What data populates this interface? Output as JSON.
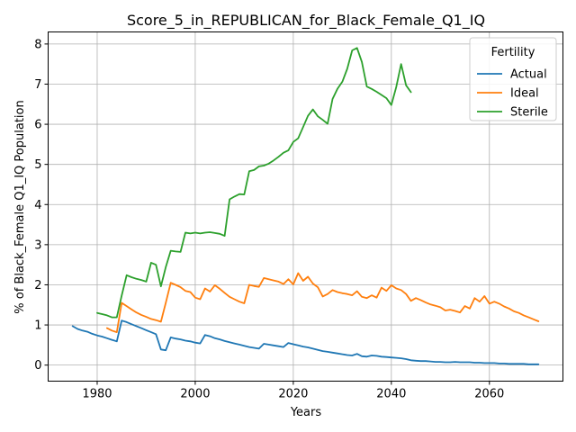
{
  "chart_data": {
    "type": "line",
    "title": "Score_5_in_REPUBLICAN_for_Black_Female_Q1_IQ",
    "xlabel": "Years",
    "ylabel": "% of Black_Female Q1_IQ Population",
    "xlim": [
      1970,
      2075
    ],
    "ylim": [
      -0.4,
      8.3
    ],
    "xticks": [
      1980,
      2000,
      2020,
      2040,
      2060
    ],
    "yticks": [
      0,
      1,
      2,
      3,
      4,
      5,
      6,
      7,
      8
    ],
    "grid": true,
    "legend": {
      "title": "Fertility",
      "placement": "top-right"
    },
    "series": [
      {
        "name": "Actual",
        "color": "#1f77b4",
        "x": [
          1975,
          1976,
          1977,
          1978,
          1979,
          1980,
          1981,
          1982,
          1983,
          1984,
          1985,
          1986,
          1987,
          1988,
          1989,
          1990,
          1991,
          1992,
          1993,
          1994,
          1995,
          1996,
          1997,
          1998,
          1999,
          2000,
          2001,
          2002,
          2003,
          2004,
          2005,
          2006,
          2007,
          2008,
          2009,
          2010,
          2011,
          2012,
          2013,
          2014,
          2015,
          2016,
          2017,
          2018,
          2019,
          2020,
          2021,
          2022,
          2023,
          2024,
          2025,
          2026,
          2027,
          2028,
          2029,
          2030,
          2031,
          2032,
          2033,
          2034,
          2035,
          2036,
          2037,
          2038,
          2039,
          2040,
          2041,
          2042,
          2043,
          2044,
          2045,
          2046,
          2047,
          2048,
          2049,
          2050,
          2051,
          2052,
          2053,
          2054,
          2055,
          2056,
          2057,
          2058,
          2059,
          2060,
          2061,
          2062,
          2063,
          2064,
          2065,
          2066,
          2067,
          2068,
          2069,
          2070
        ],
        "y": [
          0.97,
          0.9,
          0.86,
          0.83,
          0.78,
          0.74,
          0.71,
          0.67,
          0.63,
          0.59,
          1.11,
          1.07,
          1.02,
          0.97,
          0.92,
          0.87,
          0.82,
          0.77,
          0.39,
          0.37,
          0.69,
          0.66,
          0.64,
          0.61,
          0.59,
          0.56,
          0.54,
          0.75,
          0.72,
          0.67,
          0.64,
          0.6,
          0.57,
          0.54,
          0.51,
          0.48,
          0.45,
          0.43,
          0.41,
          0.53,
          0.51,
          0.49,
          0.47,
          0.45,
          0.55,
          0.52,
          0.49,
          0.46,
          0.44,
          0.41,
          0.38,
          0.35,
          0.33,
          0.31,
          0.29,
          0.27,
          0.25,
          0.24,
          0.28,
          0.22,
          0.21,
          0.24,
          0.23,
          0.21,
          0.2,
          0.19,
          0.18,
          0.17,
          0.15,
          0.12,
          0.11,
          0.1,
          0.1,
          0.09,
          0.08,
          0.08,
          0.07,
          0.07,
          0.08,
          0.07,
          0.07,
          0.07,
          0.06,
          0.06,
          0.05,
          0.05,
          0.05,
          0.04,
          0.04,
          0.03,
          0.03,
          0.03,
          0.03,
          0.02,
          0.02,
          0.02
        ]
      },
      {
        "name": "Ideal",
        "color": "#ff7f0e",
        "x": [
          1982,
          1983,
          1984,
          1985,
          1986,
          1987,
          1988,
          1989,
          1990,
          1991,
          1992,
          1993,
          1994,
          1995,
          1996,
          1997,
          1998,
          1999,
          2000,
          2001,
          2002,
          2003,
          2004,
          2005,
          2006,
          2007,
          2008,
          2009,
          2010,
          2011,
          2012,
          2013,
          2014,
          2015,
          2016,
          2017,
          2018,
          2019,
          2020,
          2021,
          2022,
          2023,
          2024,
          2025,
          2026,
          2027,
          2028,
          2029,
          2030,
          2031,
          2032,
          2033,
          2034,
          2035,
          2036,
          2037,
          2038,
          2039,
          2040,
          2041,
          2042,
          2043,
          2044,
          2045,
          2046,
          2047,
          2048,
          2049,
          2050,
          2051,
          2052,
          2053,
          2054,
          2055,
          2056,
          2057,
          2058,
          2059,
          2060,
          2061,
          2062,
          2063,
          2064,
          2065,
          2066,
          2067,
          2068,
          2069,
          2070
        ],
        "y": [
          0.92,
          0.86,
          0.82,
          1.55,
          1.47,
          1.39,
          1.31,
          1.25,
          1.2,
          1.15,
          1.12,
          1.08,
          1.55,
          2.05,
          2.0,
          1.94,
          1.85,
          1.82,
          1.68,
          1.64,
          1.91,
          1.83,
          1.99,
          1.9,
          1.8,
          1.7,
          1.64,
          1.58,
          1.54,
          2.0,
          1.97,
          1.95,
          2.17,
          2.14,
          2.11,
          2.08,
          2.02,
          2.14,
          2.01,
          2.29,
          2.1,
          2.2,
          2.03,
          1.94,
          1.71,
          1.77,
          1.87,
          1.82,
          1.79,
          1.77,
          1.74,
          1.84,
          1.7,
          1.67,
          1.74,
          1.68,
          1.93,
          1.85,
          1.99,
          1.91,
          1.87,
          1.77,
          1.6,
          1.67,
          1.62,
          1.56,
          1.51,
          1.48,
          1.44,
          1.36,
          1.38,
          1.35,
          1.31,
          1.47,
          1.41,
          1.67,
          1.58,
          1.72,
          1.53,
          1.58,
          1.53,
          1.46,
          1.41,
          1.34,
          1.3,
          1.24,
          1.19,
          1.14,
          1.09
        ]
      },
      {
        "name": "Sterile",
        "color": "#2ca02c",
        "x": [
          1980,
          1981,
          1982,
          1983,
          1984,
          1985,
          1986,
          1987,
          1988,
          1989,
          1990,
          1991,
          1992,
          1993,
          1994,
          1995,
          1996,
          1997,
          1998,
          1999,
          2000,
          2001,
          2002,
          2003,
          2004,
          2005,
          2006,
          2007,
          2008,
          2009,
          2010,
          2011,
          2012,
          2013,
          2014,
          2015,
          2016,
          2017,
          2018,
          2019,
          2020,
          2021,
          2022,
          2023,
          2024,
          2025,
          2026,
          2027,
          2028,
          2029,
          2030,
          2031,
          2032,
          2033,
          2034,
          2035,
          2036,
          2037,
          2038,
          2039,
          2040,
          2041,
          2042,
          2043,
          2044
        ],
        "y": [
          1.3,
          1.27,
          1.24,
          1.19,
          1.19,
          1.73,
          2.24,
          2.19,
          2.15,
          2.12,
          2.08,
          2.55,
          2.5,
          1.96,
          2.44,
          2.85,
          2.83,
          2.82,
          3.3,
          3.28,
          3.3,
          3.28,
          3.3,
          3.31,
          3.29,
          3.27,
          3.22,
          4.13,
          4.2,
          4.26,
          4.25,
          4.83,
          4.86,
          4.95,
          4.97,
          5.02,
          5.1,
          5.19,
          5.29,
          5.35,
          5.56,
          5.65,
          5.93,
          6.21,
          6.37,
          6.2,
          6.11,
          6.01,
          6.63,
          6.88,
          7.06,
          7.38,
          7.84,
          7.9,
          7.55,
          6.94,
          6.88,
          6.81,
          6.73,
          6.65,
          6.48,
          6.93,
          7.5,
          6.97,
          6.8
        ]
      }
    ]
  }
}
